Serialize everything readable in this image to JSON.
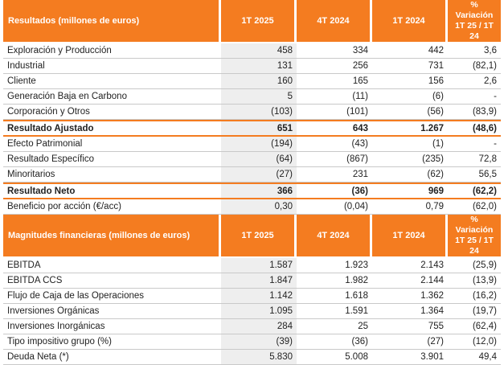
{
  "table1": {
    "headers": [
      "Resultados (millones de euros)",
      "1T 2025",
      "4T 2024",
      "1T 2024",
      "% Variación",
      "1T 25 / 1T 24"
    ],
    "rows": [
      {
        "label": "Exploración y Producción",
        "v1": "458",
        "v2": "334",
        "v3": "442",
        "v4": "3,6"
      },
      {
        "label": "Industrial",
        "v1": "131",
        "v2": "256",
        "v3": "731",
        "v4": "(82,1)"
      },
      {
        "label": "Cliente",
        "v1": "160",
        "v2": "165",
        "v3": "156",
        "v4": "2,6"
      },
      {
        "label": "Generación Baja en Carbono",
        "v1": "5",
        "v2": "(11)",
        "v3": "(6)",
        "v4": "-"
      },
      {
        "label": "Corporación y Otros",
        "v1": "(103)",
        "v2": "(101)",
        "v3": "(56)",
        "v4": "(83,9)"
      }
    ],
    "adjusted": {
      "label": "Resultado Ajustado",
      "v1": "651",
      "v2": "643",
      "v3": "1.267",
      "v4": "(48,6)"
    },
    "rows2": [
      {
        "label": "Efecto Patrimonial",
        "v1": "(194)",
        "v2": "(43)",
        "v3": "(1)",
        "v4": "-"
      },
      {
        "label": "Resultado Específico",
        "v1": "(64)",
        "v2": "(867)",
        "v3": "(235)",
        "v4": "72,8"
      },
      {
        "label": "Minoritarios",
        "v1": "(27)",
        "v2": "231",
        "v3": "(62)",
        "v4": "56,5"
      }
    ],
    "net": {
      "label": "Resultado Neto",
      "v1": "366",
      "v2": "(36)",
      "v3": "969",
      "v4": "(62,2)"
    },
    "eps": {
      "label": "Beneficio por acción (€/acc)",
      "v1": "0,30",
      "v2": "(0,04)",
      "v3": "0,79",
      "v4": "(62,0)"
    }
  },
  "table2": {
    "headers": [
      "Magnitudes financieras (millones de euros)",
      "1T 2025",
      "4T 2024",
      "1T 2024",
      "% Variación",
      "1T 25 / 1T 24"
    ],
    "rows": [
      {
        "label": "EBITDA",
        "v1": "1.587",
        "v2": "1.923",
        "v3": "2.143",
        "v4": "(25,9)"
      },
      {
        "label": "EBITDA CCS",
        "v1": "1.847",
        "v2": "1.982",
        "v3": "2.144",
        "v4": "(13,9)"
      },
      {
        "label": "Flujo de Caja de las Operaciones",
        "v1": "1.142",
        "v2": "1.618",
        "v3": "1.362",
        "v4": "(16,2)"
      },
      {
        "label": "Inversiones Orgánicas",
        "v1": "1.095",
        "v2": "1.591",
        "v3": "1.364",
        "v4": "(19,7)"
      },
      {
        "label": "Inversiones Inorgánicas",
        "v1": "284",
        "v2": "25",
        "v3": "755",
        "v4": "(62,4)"
      },
      {
        "label": "Tipo impositivo grupo (%)",
        "v1": "(39)",
        "v2": "(36)",
        "v3": "(27)",
        "v4": "(12,0)"
      },
      {
        "label": "Deuda Neta (*)",
        "v1": "5.830",
        "v2": "5.008",
        "v3": "3.901",
        "v4": "49,4"
      }
    ]
  }
}
